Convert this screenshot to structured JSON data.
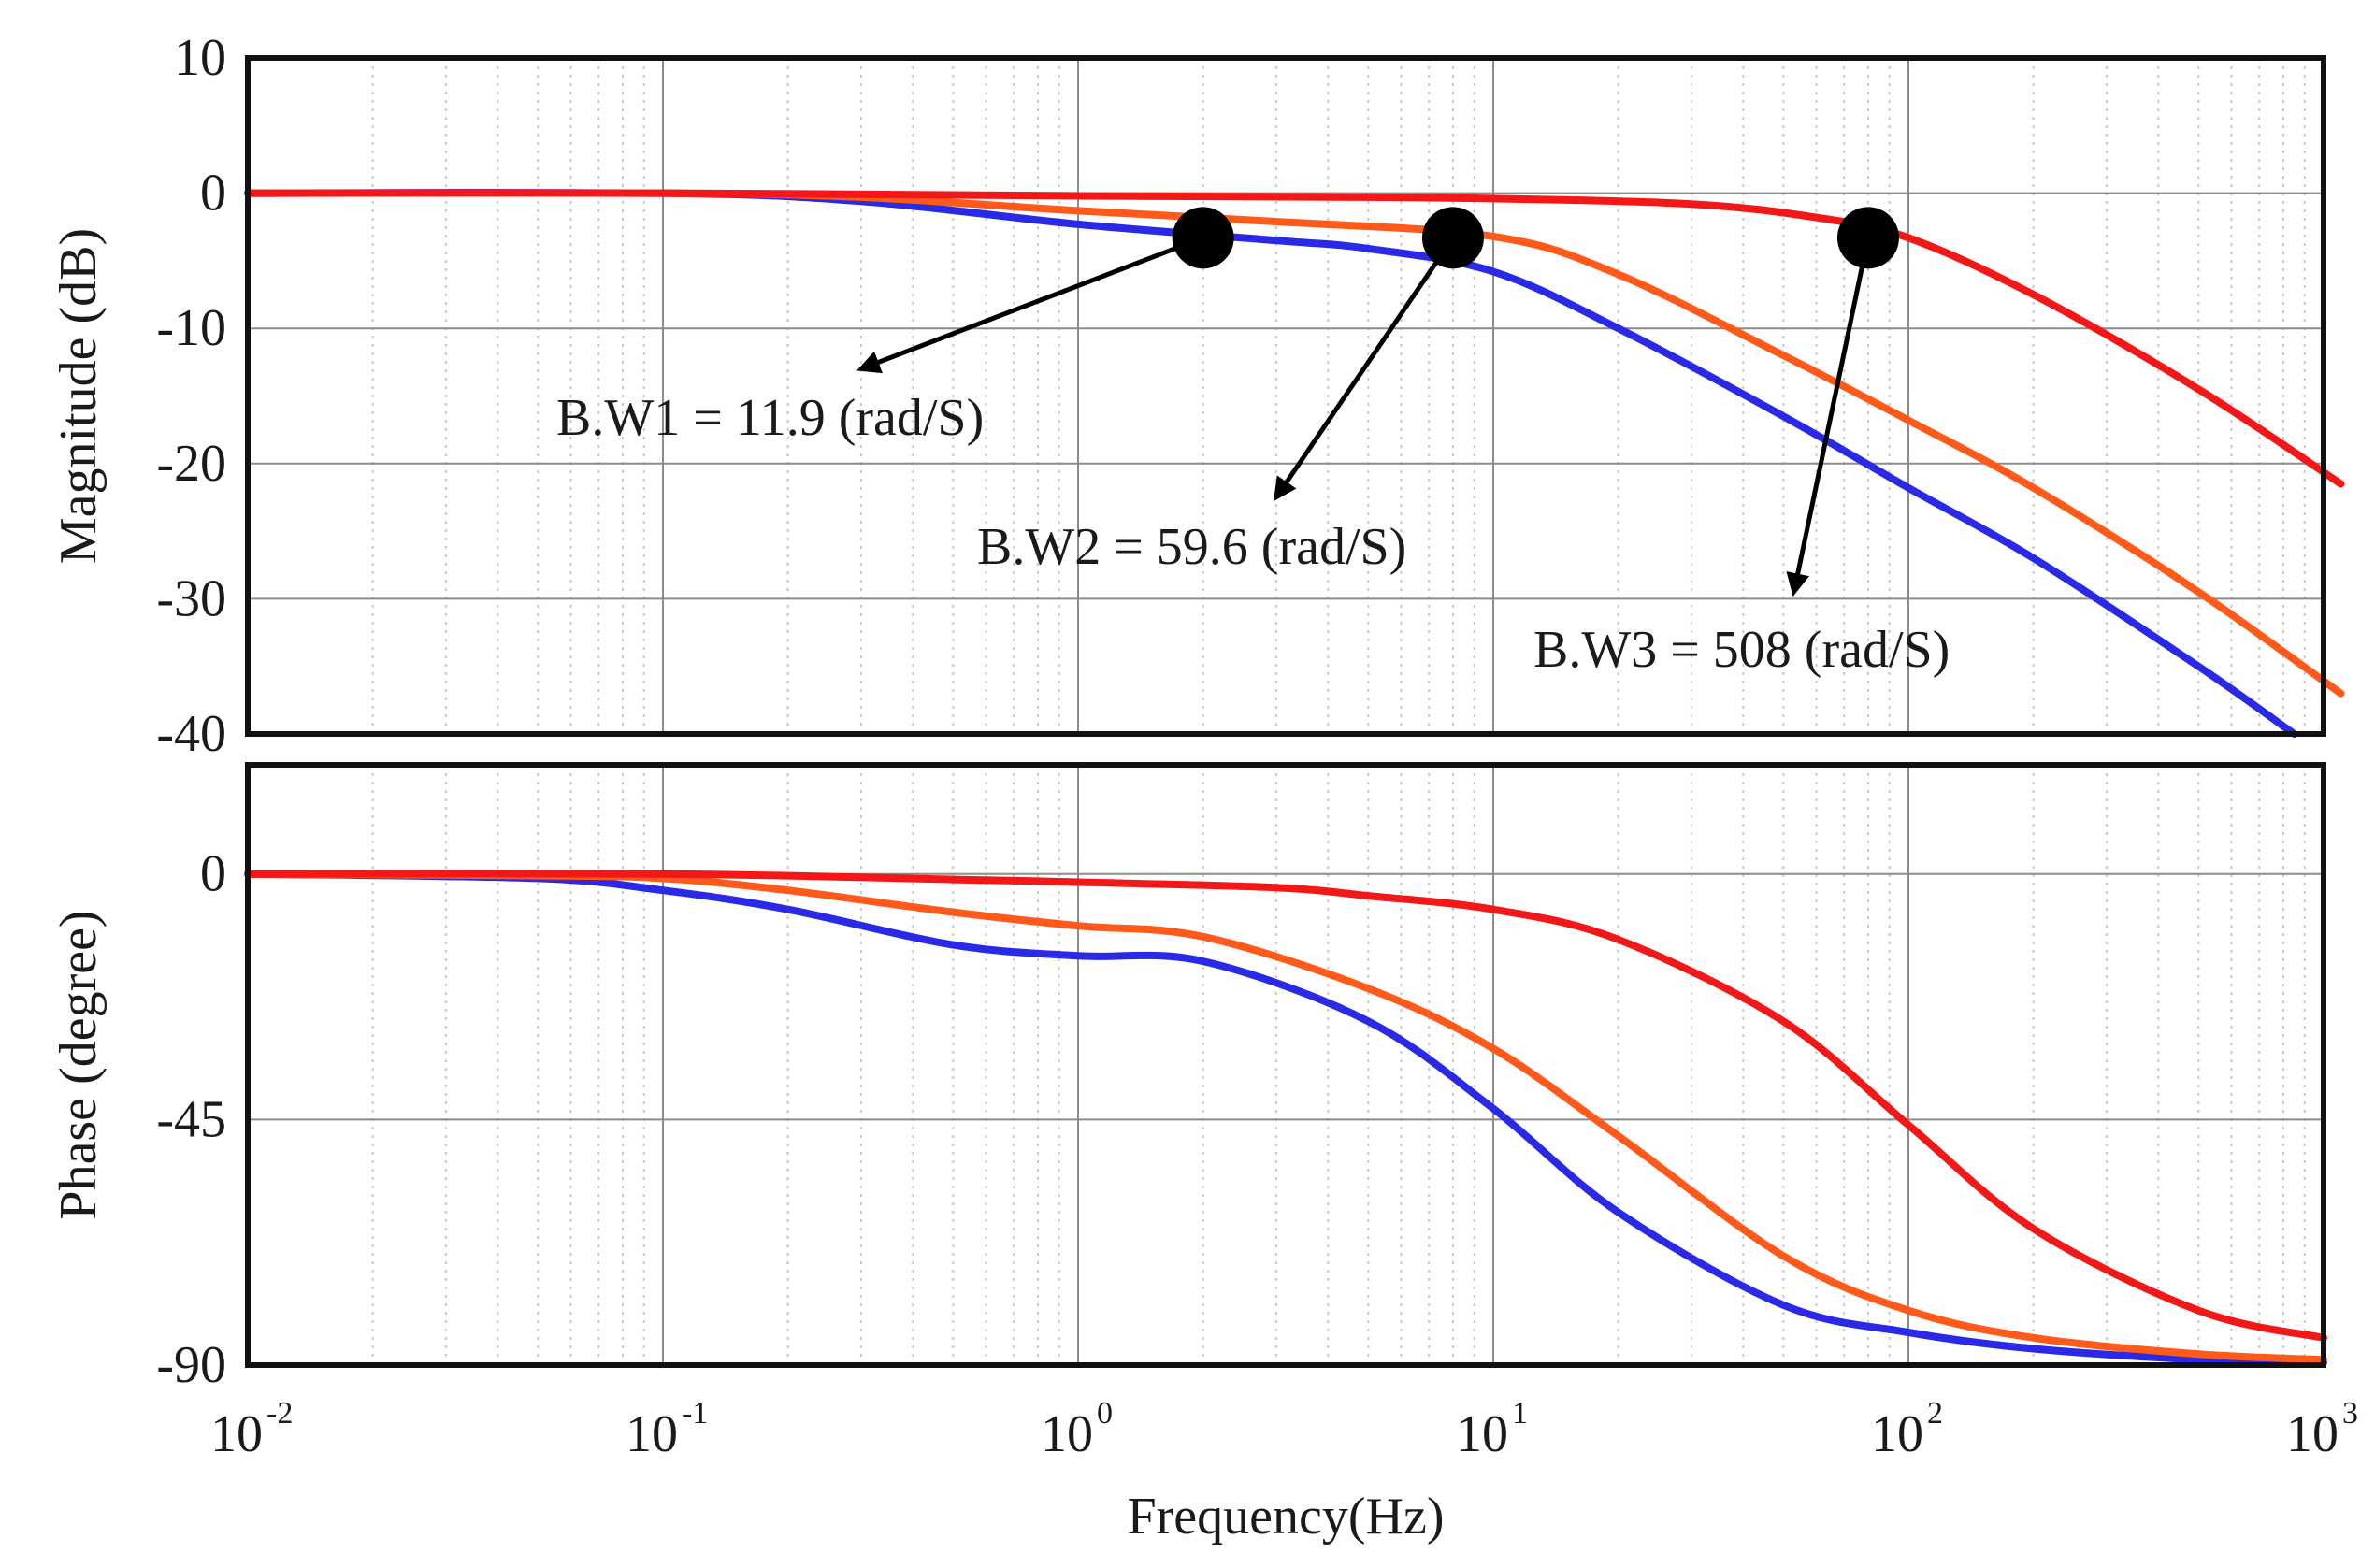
{
  "chart_data": [
    {
      "type": "line",
      "panel": "magnitude",
      "ylabel": "Magnitude (dB)",
      "xscale": "log",
      "xlim": [
        0.01,
        1000
      ],
      "ylim": [
        -40,
        10
      ],
      "yticks": [
        "10",
        "0",
        "-10",
        "-20",
        "-30",
        "-40"
      ],
      "yticks_values": [
        10,
        0,
        -10,
        -20,
        -30,
        -40
      ],
      "series": [
        {
          "name": "BW1",
          "color": "#2a2ae6",
          "x": [
            0.01,
            0.1,
            0.3,
            1,
            3,
            5,
            10,
            20,
            50,
            100,
            200,
            500,
            850
          ],
          "y": [
            0,
            0,
            -0.6,
            -2.3,
            -3.5,
            -4.1,
            -5.8,
            -10,
            -16.5,
            -21.8,
            -27,
            -35,
            -40
          ]
        },
        {
          "name": "BW2",
          "color": "#ff5a1a",
          "x": [
            0.01,
            0.1,
            0.3,
            1,
            3,
            10,
            20,
            50,
            100,
            200,
            500,
            1100
          ],
          "y": [
            0,
            0,
            -0.3,
            -1.3,
            -2.1,
            -3.2,
            -6,
            -12,
            -16.8,
            -21.8,
            -29.5,
            -37
          ]
        },
        {
          "name": "BW3",
          "color": "#f31818",
          "x": [
            0.01,
            0.1,
            1,
            5,
            10,
            30,
            60,
            100,
            200,
            500,
            1100
          ],
          "y": [
            0,
            0,
            -0.2,
            -0.3,
            -0.4,
            -0.8,
            -1.8,
            -3.3,
            -7.5,
            -14.5,
            -21.5
          ]
        }
      ],
      "markers": [
        {
          "x": 2,
          "y": -3.3
        },
        {
          "x": 8,
          "y": -3.3
        },
        {
          "x": 80,
          "y": -3.3
        }
      ],
      "annotations": [
        {
          "text": "B.W1 = 11.9 (rad/S)",
          "arrow_from": [
            2,
            -3.3
          ],
          "arrow_to": [
            0.3,
            -13
          ]
        },
        {
          "text": "B.W2 = 59.6 (rad/S)",
          "arrow_from": [
            8,
            -3.3
          ],
          "arrow_to": [
            3,
            -22.5
          ]
        },
        {
          "text": "B.W3 = 508 (rad/S)",
          "arrow_from": [
            80,
            -3.3
          ],
          "arrow_to": [
            53,
            -29.5
          ]
        }
      ]
    },
    {
      "type": "line",
      "panel": "phase",
      "ylabel": "Phase (degree)",
      "xlabel": "Frequency(Hz)",
      "xscale": "log",
      "xlim": [
        0.01,
        1000
      ],
      "ylim": [
        -90,
        20
      ],
      "yticks": [
        "0",
        "-45",
        "-90"
      ],
      "yticks_values": [
        0,
        -45,
        -90
      ],
      "xticks": [
        {
          "base": "10",
          "exp": "-2",
          "value": 0.01
        },
        {
          "base": "10",
          "exp": "-1",
          "value": 0.1
        },
        {
          "base": "10",
          "exp": "0",
          "value": 1
        },
        {
          "base": "10",
          "exp": "1",
          "value": 10
        },
        {
          "base": "10",
          "exp": "2",
          "value": 100
        },
        {
          "base": "10",
          "exp": "3",
          "value": 1000
        }
      ],
      "series": [
        {
          "name": "BW1",
          "color": "#2a2ae6",
          "x": [
            0.01,
            0.05,
            0.1,
            0.2,
            0.5,
            1,
            2,
            5,
            10,
            20,
            50,
            100,
            200,
            500,
            1000
          ],
          "y": [
            0,
            -0.8,
            -3,
            -6.5,
            -13,
            -15,
            -16,
            -27,
            -43,
            -62,
            -79,
            -84,
            -87,
            -89,
            -89.5
          ]
        },
        {
          "name": "BW2",
          "color": "#ff5a1a",
          "x": [
            0.01,
            0.05,
            0.1,
            0.2,
            0.5,
            1,
            2,
            5,
            10,
            20,
            50,
            100,
            200,
            500,
            1000
          ],
          "y": [
            0,
            -0.3,
            -0.8,
            -3,
            -7,
            -9.5,
            -11.5,
            -21,
            -32,
            -48,
            -70,
            -80,
            -85,
            -88,
            -89
          ]
        },
        {
          "name": "BW3",
          "color": "#f31818",
          "x": [
            0.01,
            0.1,
            0.5,
            1,
            3,
            5,
            10,
            20,
            50,
            100,
            200,
            500,
            1000
          ],
          "y": [
            0,
            0,
            -1,
            -1.5,
            -2.5,
            -4,
            -6.5,
            -12,
            -27,
            -46,
            -65,
            -80,
            -85
          ]
        }
      ]
    }
  ]
}
